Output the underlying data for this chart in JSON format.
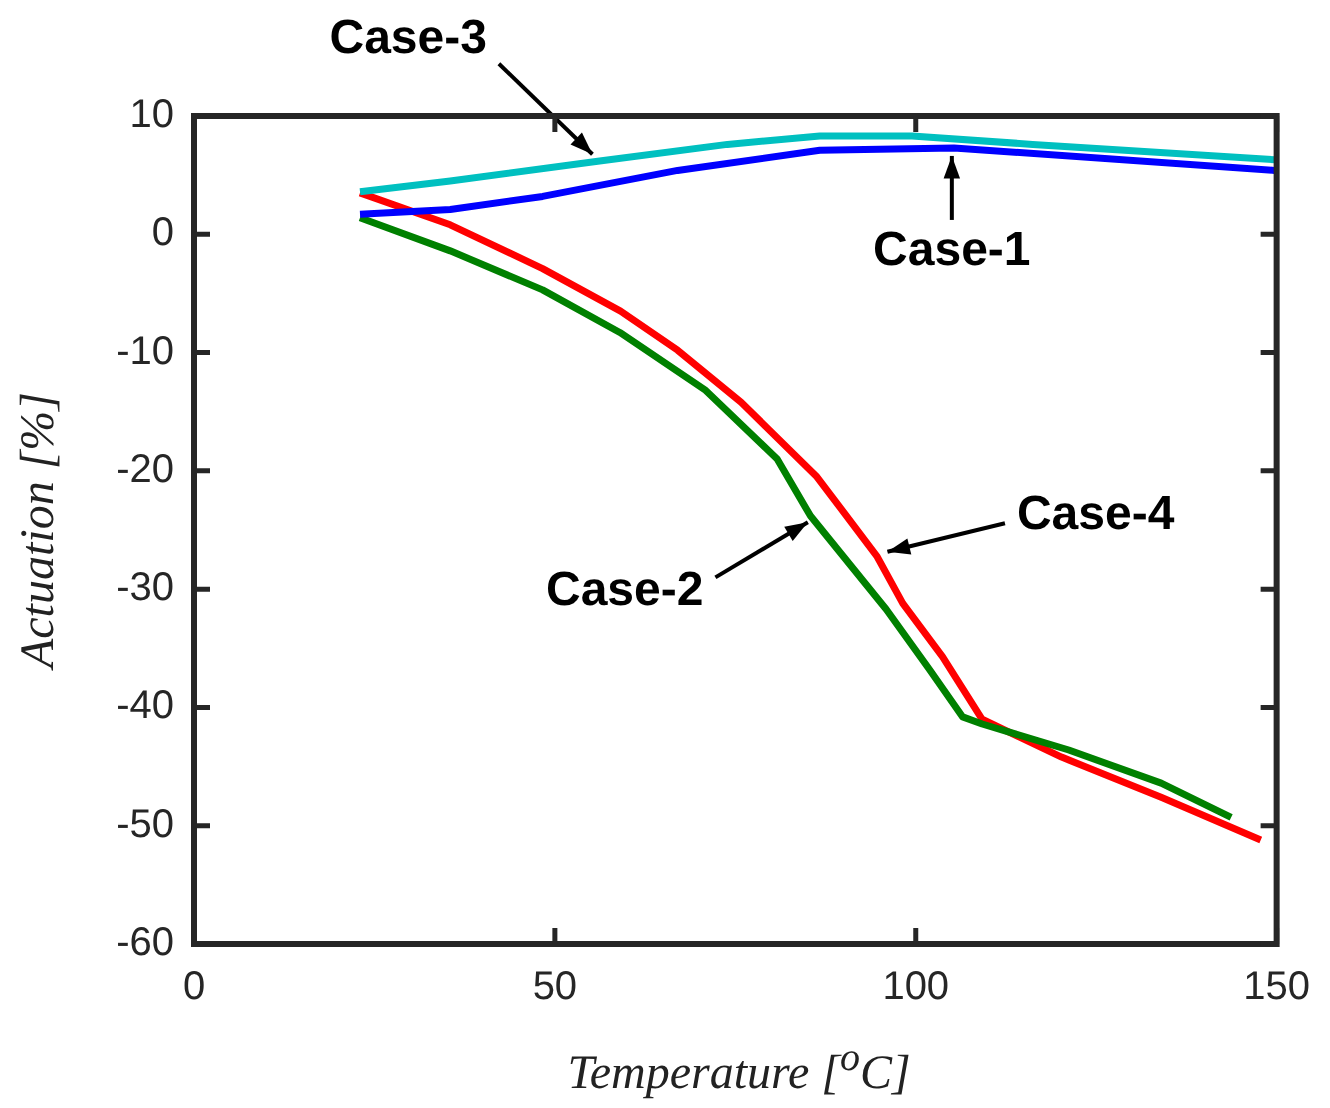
{
  "chart_data": {
    "type": "line",
    "xlabel": "Temperature [$^{o}$C]",
    "ylabel": "Actuation [%]",
    "xlim": [
      0,
      150
    ],
    "xticks": [
      0,
      50,
      100,
      150
    ],
    "ylim": [
      -60,
      10
    ],
    "yticks": [
      -60,
      -50,
      -40,
      -30,
      -20,
      -10,
      0,
      10
    ],
    "grid": false,
    "legend": false,
    "marker": "none",
    "line_style": "solid",
    "series": [
      {
        "color": "#0000ff",
        "x": [
          23,
          35.5,
          48.3,
          67,
          86.7,
          105.3,
          149.7
        ],
        "values": [
          1.7,
          2.1,
          3.2,
          5.4,
          7.1,
          7.3,
          5.4
        ]
      },
      {
        "color": "#008000",
        "x": [
          23,
          35.5,
          48.3,
          59,
          70.9,
          80.8,
          85.4,
          95.9,
          101.9,
          106.5,
          109.2,
          121.2,
          134,
          143.7
        ],
        "values": [
          1.4,
          -1.4,
          -4.7,
          -8.3,
          -13.2,
          -19,
          -23.8,
          -31.7,
          -36.8,
          -40.8,
          -41.4,
          -43.6,
          -46.4,
          -49.3
        ]
      },
      {
        "color": "#00c0c0",
        "x": [
          23,
          35.5,
          56.2,
          73.9,
          86.7,
          99.5,
          116.2,
          149.7
        ],
        "values": [
          3.6,
          4.5,
          6.2,
          7.6,
          8.3,
          8.3,
          7.6,
          6.3
        ]
      },
      {
        "color": "#ff0000",
        "x": [
          23,
          35.5,
          48.3,
          59.1,
          67,
          75.8,
          86.3,
          94.6,
          98.2,
          103.7,
          109.2,
          120.2,
          134,
          147.8
        ],
        "values": [
          3.5,
          0.8,
          -2.9,
          -6.5,
          -9.8,
          -14.2,
          -20.5,
          -27.2,
          -31.2,
          -35.7,
          -41,
          -44.2,
          -47.6,
          -51.2
        ]
      }
    ],
    "annotations": [
      {
        "text": "Case-1",
        "x": 105,
        "y": 7.3
      },
      {
        "text": "Case-2",
        "x": 86,
        "y": -24
      },
      {
        "text": "Case-3",
        "x": 56,
        "y": 6.3
      },
      {
        "text": "Case-4",
        "x": 95,
        "y": -27
      }
    ]
  }
}
